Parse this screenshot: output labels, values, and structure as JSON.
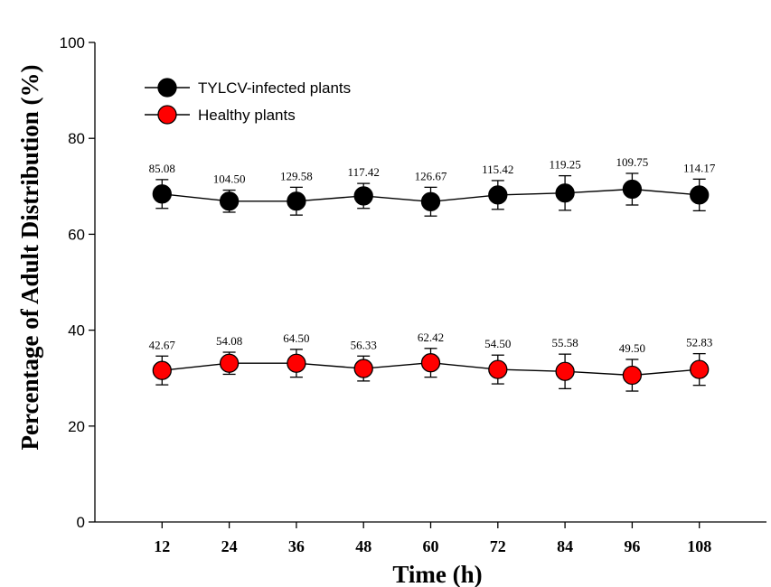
{
  "chart_data": {
    "type": "line",
    "title": "",
    "xlabel": "Time (h)",
    "ylabel": "Percentage of Adult Distribution (%)",
    "x": [
      12,
      24,
      36,
      48,
      60,
      72,
      84,
      96,
      108
    ],
    "xlim": [
      0,
      120
    ],
    "ylim": [
      0,
      100
    ],
    "yticks": [
      0,
      20,
      40,
      60,
      80,
      100
    ],
    "grid": false,
    "legend_position": "top-left",
    "series": [
      {
        "name": "TYLCV-infected plants",
        "color": "#000000",
        "values": [
          68.4,
          66.9,
          66.9,
          68.0,
          66.8,
          68.2,
          68.6,
          69.4,
          68.2
        ],
        "error": [
          3.0,
          2.3,
          2.9,
          2.6,
          3.0,
          3.0,
          3.6,
          3.3,
          3.3
        ],
        "labels": [
          "85.08",
          "104.50",
          "129.58",
          "117.42",
          "126.67",
          "115.42",
          "119.25",
          "109.75",
          "114.17"
        ]
      },
      {
        "name": "Healthy plants",
        "color": "#ff0000",
        "values": [
          31.6,
          33.1,
          33.1,
          32.0,
          33.2,
          31.8,
          31.4,
          30.6,
          31.8
        ],
        "error": [
          3.0,
          2.3,
          2.9,
          2.6,
          3.0,
          3.0,
          3.6,
          3.3,
          3.3
        ],
        "labels": [
          "42.67",
          "54.08",
          "64.50",
          "56.33",
          "62.42",
          "54.50",
          "55.58",
          "49.50",
          "52.83"
        ]
      }
    ]
  }
}
